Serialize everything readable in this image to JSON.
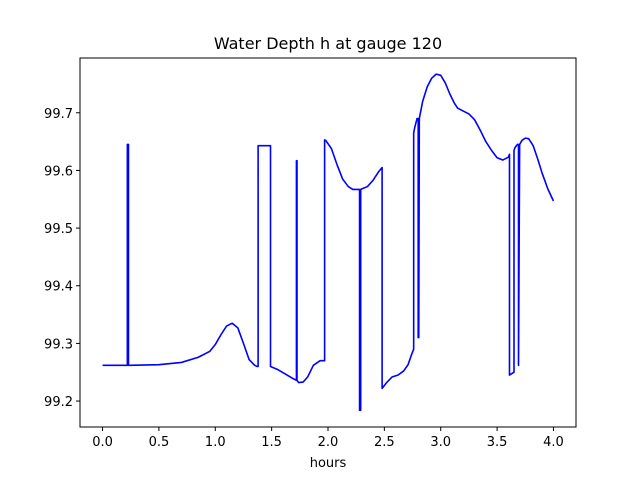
{
  "chart_data": {
    "type": "line",
    "title": "Water Depth h at gauge 120",
    "xlabel": "hours",
    "ylabel": "",
    "xlim": [
      -0.2,
      4.2
    ],
    "ylim": [
      99.155,
      99.795
    ],
    "xticks": [
      0.0,
      0.5,
      1.0,
      1.5,
      2.0,
      2.5,
      3.0,
      3.5,
      4.0
    ],
    "xtick_labels": [
      "0.0",
      "0.5",
      "1.0",
      "1.5",
      "2.0",
      "2.5",
      "3.0",
      "3.5",
      "4.0"
    ],
    "yticks": [
      99.2,
      99.3,
      99.4,
      99.5,
      99.6,
      99.7
    ],
    "ytick_labels": [
      "99.2",
      "99.3",
      "99.4",
      "99.5",
      "99.6",
      "99.7"
    ],
    "grid": false,
    "colors": {
      "line": "#0000ff",
      "axes": "#000000",
      "background": "#ffffff"
    },
    "series": [
      {
        "x": [
          0.0,
          0.22,
          0.22,
          0.23,
          0.23,
          0.24,
          0.24,
          0.5,
          0.7,
          0.85,
          0.95,
          1.0,
          1.05,
          1.1,
          1.15,
          1.2,
          1.25,
          1.3,
          1.35,
          1.37,
          1.38,
          1.38,
          1.49,
          1.49,
          1.55,
          1.62,
          1.68,
          1.72,
          1.72,
          1.725,
          1.725,
          1.74,
          1.78,
          1.82,
          1.87,
          1.93,
          1.97,
          1.97,
          1.98,
          2.03,
          2.08,
          2.13,
          2.18,
          2.22,
          2.26,
          2.28,
          2.28,
          2.29,
          2.29,
          2.3,
          2.35,
          2.4,
          2.45,
          2.48,
          2.48,
          2.52,
          2.57,
          2.62,
          2.67,
          2.71,
          2.74,
          2.76,
          2.76,
          2.77,
          2.79,
          2.8,
          2.8,
          2.805,
          2.81,
          2.84,
          2.88,
          2.92,
          2.96,
          3.0,
          3.04,
          3.08,
          3.12,
          3.15,
          3.2,
          3.25,
          3.3,
          3.35,
          3.4,
          3.45,
          3.5,
          3.55,
          3.6,
          3.61,
          3.61,
          3.65,
          3.65,
          3.66,
          3.68,
          3.69,
          3.69,
          3.7,
          3.72,
          3.75,
          3.78,
          3.82,
          3.86,
          3.9,
          3.95,
          4.0
        ],
        "y": [
          99.262,
          99.262,
          99.645,
          99.645,
          99.262,
          99.262,
          99.262,
          99.263,
          99.267,
          99.276,
          99.286,
          99.298,
          99.315,
          99.33,
          99.335,
          99.327,
          99.3,
          99.272,
          99.262,
          99.26,
          99.26,
          99.643,
          99.643,
          99.26,
          99.255,
          99.247,
          99.24,
          99.236,
          99.617,
          99.617,
          99.236,
          99.232,
          99.233,
          99.242,
          99.262,
          99.27,
          99.27,
          99.653,
          99.652,
          99.638,
          99.61,
          99.585,
          99.572,
          99.567,
          99.567,
          99.567,
          99.184,
          99.184,
          99.567,
          99.568,
          99.572,
          99.583,
          99.598,
          99.605,
          99.222,
          99.232,
          99.242,
          99.245,
          99.252,
          99.263,
          99.28,
          99.29,
          99.665,
          99.675,
          99.69,
          99.69,
          99.31,
          99.31,
          99.69,
          99.72,
          99.745,
          99.76,
          99.767,
          99.765,
          99.752,
          99.733,
          99.717,
          99.708,
          99.703,
          99.698,
          99.688,
          99.67,
          99.65,
          99.635,
          99.622,
          99.618,
          99.623,
          99.628,
          99.245,
          99.25,
          99.635,
          99.64,
          99.645,
          99.645,
          99.262,
          99.645,
          99.652,
          99.656,
          99.655,
          99.643,
          99.62,
          99.595,
          99.568,
          99.547
        ]
      }
    ]
  }
}
